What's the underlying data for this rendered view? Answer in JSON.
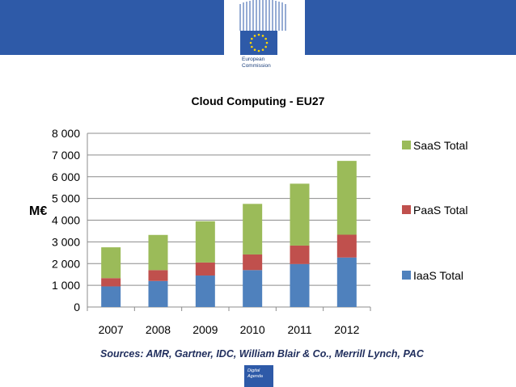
{
  "header": {
    "org_line1": "European",
    "org_line2": "Commission",
    "band_color": "#2e5aa8",
    "logo_icon": "eu-flag-icon"
  },
  "chart_data": {
    "type": "bar",
    "stacked": true,
    "title": "Cloud Computing - EU27",
    "ylabel": "M€",
    "xlabel": "",
    "categories": [
      "2007",
      "2008",
      "2009",
      "2010",
      "2011",
      "2012"
    ],
    "ylim": [
      0,
      8000
    ],
    "yticks": [
      0,
      1000,
      2000,
      3000,
      4000,
      5000,
      6000,
      7000,
      8000
    ],
    "ytick_labels": [
      "0",
      "1 000",
      "2 000",
      "3 000",
      "4 000",
      "5 000",
      "6 000",
      "7 000",
      "8 000"
    ],
    "grid": true,
    "legend_position": "right",
    "series": [
      {
        "name": "IaaS Total",
        "color": "#4f81bd",
        "values": [
          950,
          1200,
          1450,
          1700,
          1980,
          2280
        ]
      },
      {
        "name": "PaaS Total",
        "color": "#c0504d",
        "values": [
          380,
          500,
          600,
          720,
          850,
          1050
        ]
      },
      {
        "name": "SaaS Total",
        "color": "#9bbb59",
        "values": [
          1420,
          1620,
          1900,
          2330,
          2850,
          3400
        ]
      }
    ]
  },
  "legend": [
    {
      "label": "SaaS Total",
      "color": "#9bbb59"
    },
    {
      "label": "PaaS Total",
      "color": "#c0504d"
    },
    {
      "label": "IaaS Total",
      "color": "#4f81bd"
    }
  ],
  "sources": "Sources: AMR, Gartner, IDC, William Blair & Co., Merrill Lynch, PAC",
  "footer": {
    "line1": "Digital",
    "line2": "Agenda"
  }
}
